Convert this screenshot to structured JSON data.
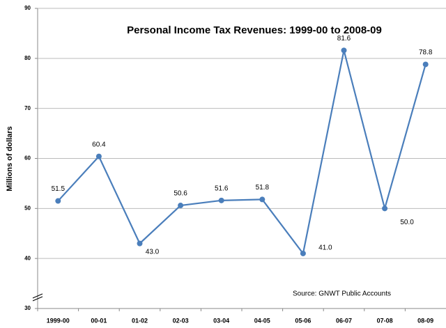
{
  "chart_data": {
    "type": "line",
    "title": "Personal Income Tax Revenues: 1999-00 to 2008-09",
    "y_label": "Millions of dollars",
    "annotation": "Source: GNWT Public Accounts",
    "categories": [
      "1999-00",
      "00-01",
      "01-02",
      "02-03",
      "03-04",
      "04-05",
      "05-06",
      "06-07",
      "07-08",
      "08-09"
    ],
    "series": [
      {
        "name": "Personal Income Tax Revenues",
        "color": "#4a7ebb",
        "values": [
          51.5,
          60.4,
          43.0,
          50.6,
          51.6,
          51.8,
          41.0,
          81.6,
          50.0,
          78.8
        ],
        "value_labels": [
          "51.5",
          "60.4",
          "43.0",
          "50.6",
          "51.6",
          "51.8",
          "41.0",
          "81.6",
          "50.0",
          "78.8"
        ]
      }
    ],
    "ylim": [
      30,
      90
    ],
    "yticks": [
      30,
      40,
      50,
      60,
      70,
      80,
      90
    ],
    "grid": true
  }
}
